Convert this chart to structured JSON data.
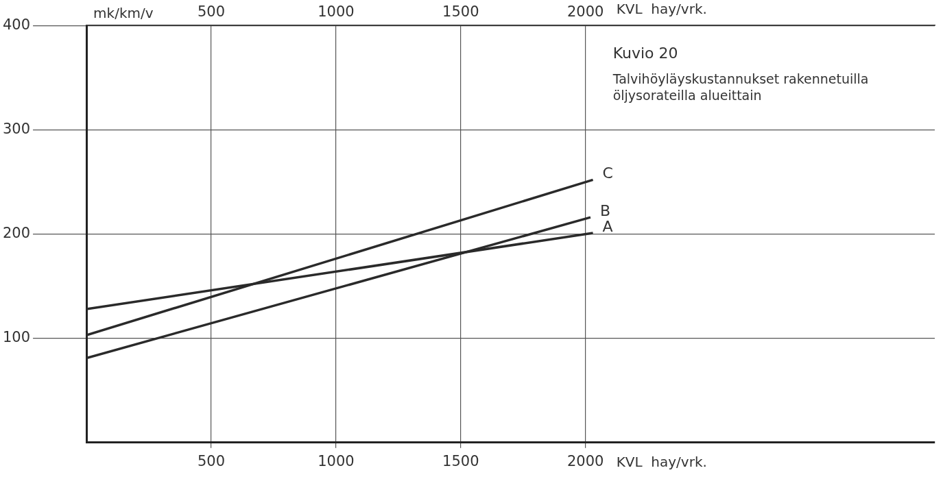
{
  "chart_data": {
    "type": "line",
    "title": "Kuvio 20",
    "subtitle": "Talvihöyläyskustannukset rakennetuilla öljysorateilla alueittain",
    "xlabel": "KVL  hay/vrk.",
    "x2label": "KVL  hay/vrk.",
    "ylabel": "mk/km/v",
    "series": [
      {
        "name": "A",
        "color": "#2a2a2a",
        "x": [
          0,
          2030
        ],
        "values": [
          128,
          201
        ]
      },
      {
        "name": "B",
        "color": "#2a2a2a",
        "x": [
          0,
          2020
        ],
        "values": [
          81,
          216
        ]
      },
      {
        "name": "C",
        "color": "#2a2a2a",
        "x": [
          0,
          2030
        ],
        "values": [
          103,
          252
        ]
      }
    ],
    "xlim": [
      0,
      3400
    ],
    "xticks": [
      500,
      1000,
      1500,
      2000
    ],
    "x2lim": [
      0,
      3400
    ],
    "x2ticks": [
      500,
      1000,
      1500,
      2000
    ],
    "ylim": [
      0,
      400
    ],
    "yticks": [
      100,
      200,
      300,
      400
    ],
    "grid": true,
    "legend": false,
    "marker": "none",
    "line_style": "solid"
  }
}
